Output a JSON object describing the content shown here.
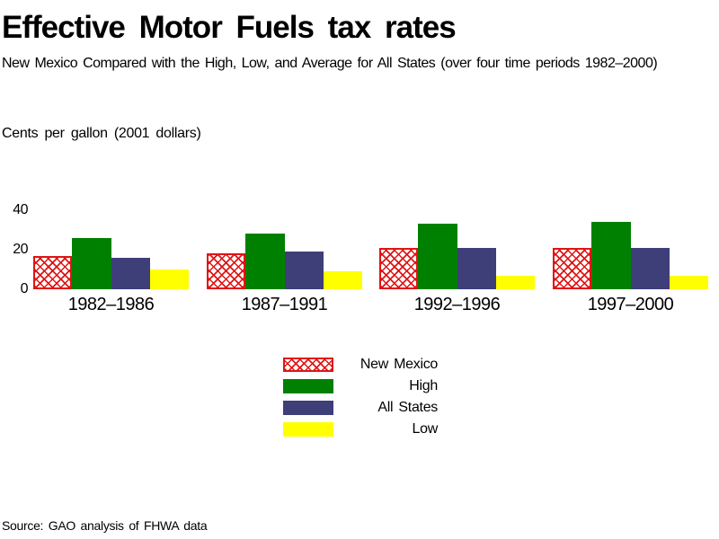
{
  "page": {
    "background": "#ffffff",
    "text_color": "#000000"
  },
  "source": "Source: GAO analysis of FHWA data",
  "chart_data": {
    "type": "bar",
    "title": "Effective Motor Fuels tax rates",
    "subtitle": "New Mexico Compared with the High, Low, and Average for All States (over four time periods 1982–2000)",
    "ylabel": "Cents per gallon (2001 dollars)",
    "xlabel": "",
    "categories": [
      "1982–1986",
      "1987–1991",
      "1992–1996",
      "1997–2000"
    ],
    "series": [
      {
        "name": "New Mexico",
        "color": "#e01414",
        "pattern": "crosshatch",
        "values": [
          17,
          18,
          21,
          21
        ]
      },
      {
        "name": "High",
        "color": "#008000",
        "pattern": "solid",
        "values": [
          26,
          28,
          33,
          34
        ]
      },
      {
        "name": "All States",
        "color": "#3e3e78",
        "pattern": "solid",
        "values": [
          16,
          19,
          21,
          21
        ]
      },
      {
        "name": "Low",
        "color": "#ffff00",
        "pattern": "solid",
        "values": [
          10,
          9,
          7,
          7
        ]
      }
    ],
    "yticks": [
      0,
      20,
      40
    ],
    "ylim": [
      0,
      40
    ],
    "grid": false,
    "axis_lines": false,
    "legend_position": "bottom-center"
  }
}
